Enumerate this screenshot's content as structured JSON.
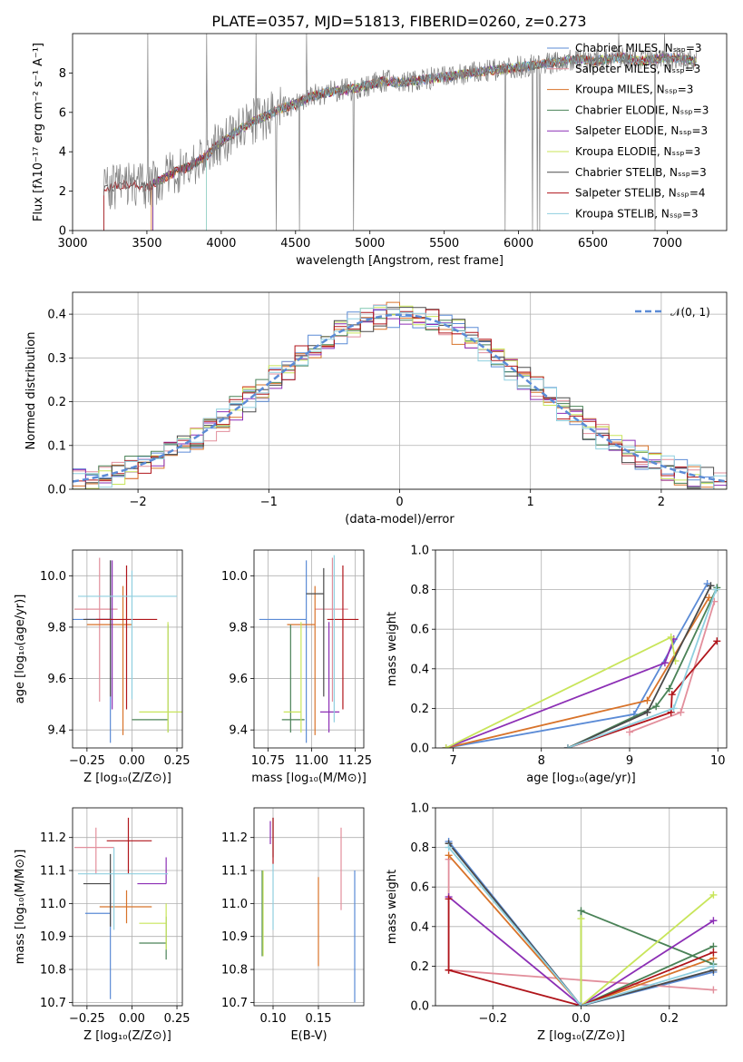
{
  "title": "PLATE=0357, MJD=51813, FIBERID=0260, z=0.273",
  "colors": {
    "Chabrier MILES": "#5b8bd6",
    "Salpeter MILES": "#e28f9c",
    "Kroupa MILES": "#d8732a",
    "Chabrier ELODIE": "#4a8257",
    "Salpeter ELODIE": "#8c2fb5",
    "Kroupa ELODIE": "#c8e55a",
    "Chabrier STELIB": "#4a4a4a",
    "Salpeter STELIB": "#b0151b",
    "Kroupa STELIB": "#8fcfdf"
  },
  "chart_data": [
    {
      "id": "spectrum",
      "type": "line",
      "xlabel": "wavelength [Angstrom, rest frame]",
      "ylabel": "Flux [fλ10⁻¹⁷ erg cm⁻² s⁻¹ A⁻¹]",
      "xlim": [
        3000,
        7400
      ],
      "ylim": [
        0,
        10
      ],
      "xticks": [
        3000,
        3500,
        4000,
        4500,
        5000,
        5500,
        6000,
        6500,
        7000
      ],
      "yticks": [
        0,
        2,
        4,
        6,
        8
      ],
      "legend_position": "right",
      "legend": [
        "Chabrier MILES, Nₛₛₚ=3",
        "Salpeter MILES, Nₛₛₚ=3",
        "Kroupa MILES, Nₛₛₚ=3",
        "Chabrier ELODIE, Nₛₛₚ=3",
        "Salpeter ELODIE, Nₛₛₚ=3",
        "Kroupa ELODIE, Nₛₛₚ=3",
        "Chabrier STELIB, Nₛₛₚ=3",
        "Salpeter STELIB, Nₛₛₚ=4",
        "Kroupa STELIB, Nₛₛₚ=3"
      ],
      "data_trace": {
        "x": [
          3210,
          3300,
          3400,
          3500,
          3600,
          3700,
          3800,
          3900,
          4000,
          4100,
          4200,
          4300,
          4400,
          4500,
          4600,
          4700,
          4800,
          4900,
          5000,
          5100,
          5200,
          5300,
          5400,
          5500,
          5600,
          5700,
          5800,
          5900,
          6000,
          6100,
          6200,
          6300,
          6400,
          6500,
          6600,
          6700,
          6800,
          6900,
          7000,
          7100,
          7200
        ],
        "y": [
          2.0,
          2.3,
          2.4,
          2.2,
          2.6,
          3.0,
          3.3,
          3.8,
          4.5,
          5.0,
          5.5,
          5.8,
          6.2,
          6.4,
          6.8,
          7.0,
          7.1,
          7.2,
          7.4,
          7.6,
          7.5,
          7.6,
          7.7,
          7.8,
          7.9,
          8.0,
          8.1,
          8.2,
          8.3,
          8.4,
          8.5,
          8.6,
          8.7,
          8.6,
          8.7,
          8.8,
          8.6,
          8.7,
          8.8,
          8.7,
          8.6
        ]
      }
    },
    {
      "id": "residuals",
      "type": "line",
      "xlabel": "(data-model)/error",
      "ylabel": "Normed distribution",
      "xlim": [
        -2.5,
        2.5
      ],
      "ylim": [
        0,
        0.45
      ],
      "xticks": [
        -2,
        -1,
        0,
        1,
        2
      ],
      "yticks": [
        0.0,
        0.1,
        0.2,
        0.3,
        0.4
      ],
      "grid": true,
      "legend": "𝒩(0, 1)",
      "legend_position": "top-right"
    },
    {
      "id": "age_vs_Z",
      "type": "scatter",
      "xlabel": "Z [log₁₀(Z/Z⊙)]",
      "ylabel": "age  [log₁₀(age/yr)]",
      "xlim": [
        -0.33,
        0.28
      ],
      "ylim": [
        9.33,
        10.1
      ],
      "xticks": [
        -0.25,
        0.0,
        0.25
      ],
      "yticks": [
        9.4,
        9.6,
        9.8,
        10.0
      ],
      "grid": true,
      "points": [
        {
          "model": "Chabrier MILES",
          "x": -0.12,
          "y": 9.83,
          "xerr": [
            0.31,
            0.0
          ],
          "yerr": [
            0.48,
            0.23
          ]
        },
        {
          "model": "Salpeter MILES",
          "x": -0.18,
          "y": 9.87,
          "xerr": [
            0.14,
            0.1
          ],
          "yerr": [
            0.36,
            0.2
          ]
        },
        {
          "model": "Kroupa MILES",
          "x": -0.05,
          "y": 9.81,
          "xerr": [
            0.2,
            0.05
          ],
          "yerr": [
            0.43,
            0.15
          ]
        },
        {
          "model": "Chabrier ELODIE",
          "x": 0.2,
          "y": 9.44,
          "xerr": [
            0.2,
            0.0
          ],
          "yerr": [
            0.05,
            0.37
          ]
        },
        {
          "model": "Salpeter ELODIE",
          "x": -0.11,
          "y": 9.83,
          "xerr": [
            0.15,
            0.0
          ],
          "yerr": [
            0.35,
            0.23
          ]
        },
        {
          "model": "Kroupa ELODIE",
          "x": 0.2,
          "y": 9.47,
          "xerr": [
            0.16,
            0.08
          ],
          "yerr": [
            0.08,
            0.35
          ]
        },
        {
          "model": "Chabrier STELIB",
          "x": -0.12,
          "y": 9.83,
          "xerr": [
            0.15,
            0.0
          ],
          "yerr": [
            0.3,
            0.23
          ]
        },
        {
          "model": "Salpeter STELIB",
          "x": -0.03,
          "y": 9.83,
          "xerr": [
            0.17,
            0.17
          ],
          "yerr": [
            0.35,
            0.21
          ]
        },
        {
          "model": "Kroupa STELIB",
          "x": 0.0,
          "y": 9.92,
          "xerr": [
            0.3,
            0.25
          ],
          "yerr": [
            0.4,
            0.1
          ]
        }
      ]
    },
    {
      "id": "age_vs_mass",
      "type": "scatter",
      "xlabel": "mass [log₁₀(M/M⊙)]",
      "ylabel": "",
      "xlim": [
        10.67,
        11.3
      ],
      "ylim": [
        9.33,
        10.1
      ],
      "xticks": [
        10.75,
        11.0,
        11.25
      ],
      "yticks": [
        9.4,
        9.6,
        9.8,
        10.0
      ],
      "grid": true,
      "points": [
        {
          "model": "Chabrier MILES",
          "x": 10.97,
          "y": 9.83,
          "xerr": [
            0.27,
            0.0
          ],
          "yerr": [
            0.48,
            0.23
          ]
        },
        {
          "model": "Salpeter MILES",
          "x": 11.12,
          "y": 9.87,
          "xerr": [
            0.1,
            0.09
          ],
          "yerr": [
            0.36,
            0.2
          ]
        },
        {
          "model": "Kroupa MILES",
          "x": 11.02,
          "y": 9.81,
          "xerr": [
            0.16,
            0.0
          ],
          "yerr": [
            0.43,
            0.15
          ]
        },
        {
          "model": "Chabrier ELODIE",
          "x": 10.88,
          "y": 9.44,
          "xerr": [
            0.05,
            0.08
          ],
          "yerr": [
            0.05,
            0.37
          ]
        },
        {
          "model": "Salpeter ELODIE",
          "x": 11.1,
          "y": 9.47,
          "xerr": [
            0.05,
            0.06
          ],
          "yerr": [
            0.08,
            0.35
          ]
        },
        {
          "model": "Kroupa ELODIE",
          "x": 10.94,
          "y": 9.47,
          "xerr": [
            0.1,
            0.0
          ],
          "yerr": [
            0.08,
            0.35
          ]
        },
        {
          "model": "Chabrier STELIB",
          "x": 11.07,
          "y": 9.93,
          "xerr": [
            0.1,
            0.0
          ],
          "yerr": [
            0.4,
            0.1
          ]
        },
        {
          "model": "Salpeter STELIB",
          "x": 11.18,
          "y": 9.83,
          "xerr": [
            0.09,
            0.09
          ],
          "yerr": [
            0.35,
            0.21
          ]
        },
        {
          "model": "Kroupa STELIB",
          "x": 11.13,
          "y": 9.93,
          "xerr": [
            0.0,
            0.0
          ],
          "yerr": [
            0.5,
            0.15
          ]
        }
      ]
    },
    {
      "id": "weight_vs_age",
      "type": "line",
      "xlabel": "age  [log₁₀(age/yr)]",
      "ylabel": "mass weight",
      "xlim": [
        6.8,
        10.1
      ],
      "ylim": [
        0.0,
        1.0
      ],
      "xticks": [
        7,
        8,
        9,
        10
      ],
      "yticks": [
        0.0,
        0.2,
        0.4,
        0.6,
        0.8,
        1.0
      ],
      "grid": true,
      "series": [
        {
          "model": "Chabrier MILES",
          "x": [
            6.92,
            9.05,
            9.88
          ],
          "y": [
            0.0,
            0.17,
            0.83
          ]
        },
        {
          "model": "Salpeter MILES",
          "x": [
            9.0,
            9.58,
            9.96
          ],
          "y": [
            0.08,
            0.18,
            0.74
          ]
        },
        {
          "model": "Kroupa MILES",
          "x": [
            6.92,
            9.2,
            9.9
          ],
          "y": [
            0.0,
            0.24,
            0.76
          ]
        },
        {
          "model": "Chabrier ELODIE",
          "x": [
            8.3,
            9.3,
            9.45,
            9.99
          ],
          "y": [
            0.0,
            0.21,
            0.3,
            0.81
          ]
        },
        {
          "model": "Salpeter ELODIE",
          "x": [
            6.92,
            9.4,
            9.5
          ],
          "y": [
            0.0,
            0.43,
            0.55
          ]
        },
        {
          "model": "Kroupa ELODIE",
          "x": [
            6.92,
            9.47,
            9.52
          ],
          "y": [
            0.0,
            0.56,
            0.44
          ]
        },
        {
          "model": "Chabrier STELIB",
          "x": [
            8.3,
            9.2,
            9.92
          ],
          "y": [
            0.0,
            0.18,
            0.82
          ]
        },
        {
          "model": "Salpeter STELIB",
          "x": [
            8.3,
            9.47,
            9.48,
            9.99
          ],
          "y": [
            0.0,
            0.18,
            0.27,
            0.54
          ]
        },
        {
          "model": "Kroupa STELIB",
          "x": [
            8.3,
            9.5,
            9.98
          ],
          "y": [
            0.0,
            0.2,
            0.8
          ]
        }
      ]
    },
    {
      "id": "mass_vs_Z",
      "type": "scatter",
      "xlabel": "Z [log₁₀(Z/Z⊙)]",
      "ylabel": "mass [log₁₀(M/M⊙)]",
      "xlim": [
        -0.33,
        0.28
      ],
      "ylim": [
        10.69,
        11.29
      ],
      "xticks": [
        -0.25,
        0.0,
        0.25
      ],
      "yticks": [
        10.7,
        10.8,
        10.9,
        11.0,
        11.1,
        11.2
      ],
      "grid": true,
      "points": [
        {
          "model": "Chabrier MILES",
          "x": -0.12,
          "y": 10.97,
          "xerr": [
            0.14,
            0.0
          ],
          "yerr": [
            0.26,
            0.12
          ]
        },
        {
          "model": "Salpeter MILES",
          "x": -0.2,
          "y": 11.17,
          "xerr": [
            0.12,
            0.1
          ],
          "yerr": [
            0.08,
            0.06
          ]
        },
        {
          "model": "Kroupa MILES",
          "x": -0.03,
          "y": 10.99,
          "xerr": [
            0.15,
            0.14
          ],
          "yerr": [
            0.05,
            0.05
          ]
        },
        {
          "model": "Chabrier ELODIE",
          "x": 0.19,
          "y": 10.88,
          "xerr": [
            0.15,
            0.0
          ],
          "yerr": [
            0.05,
            0.08
          ]
        },
        {
          "model": "Salpeter ELODIE",
          "x": 0.19,
          "y": 11.06,
          "xerr": [
            0.16,
            0.0
          ],
          "yerr": [
            0.0,
            0.08
          ]
        },
        {
          "model": "Kroupa ELODIE",
          "x": 0.19,
          "y": 10.94,
          "xerr": [
            0.15,
            0.0
          ],
          "yerr": [
            0.08,
            0.06
          ]
        },
        {
          "model": "Chabrier STELIB",
          "x": -0.12,
          "y": 11.06,
          "xerr": [
            0.15,
            0.0
          ],
          "yerr": [
            0.13,
            0.09
          ]
        },
        {
          "model": "Salpeter STELIB",
          "x": -0.02,
          "y": 11.19,
          "xerr": [
            0.12,
            0.13
          ],
          "yerr": [
            0.1,
            0.07
          ]
        },
        {
          "model": "Kroupa STELIB",
          "x": -0.1,
          "y": 11.09,
          "xerr": [
            0.2,
            0.3
          ],
          "yerr": [
            0.17,
            0.08
          ]
        }
      ]
    },
    {
      "id": "mass_vs_ebv",
      "type": "scatter",
      "xlabel": "E(B-V)",
      "ylabel": "",
      "xlim": [
        0.079,
        0.2
      ],
      "ylim": [
        10.69,
        11.29
      ],
      "xticks": [
        0.1,
        0.15
      ],
      "yticks": [
        10.7,
        10.8,
        10.9,
        11.0,
        11.1,
        11.2
      ],
      "grid": true,
      "points": [
        {
          "model": "Chabrier MILES",
          "x": 0.19,
          "y": 10.9,
          "xerr": [
            0,
            0
          ],
          "yerr": [
            0.2,
            0.2
          ]
        },
        {
          "model": "Salpeter MILES",
          "x": 0.175,
          "y": 11.1,
          "xerr": [
            0,
            0
          ],
          "yerr": [
            0.12,
            0.13
          ]
        },
        {
          "model": "Kroupa MILES",
          "x": 0.15,
          "y": 10.95,
          "xerr": [
            0,
            0
          ],
          "yerr": [
            0.14,
            0.13
          ]
        },
        {
          "model": "Chabrier ELODIE",
          "x": 0.088,
          "y": 10.97,
          "xerr": [
            0,
            0
          ],
          "yerr": [
            0.13,
            0.13
          ]
        },
        {
          "model": "Salpeter ELODIE",
          "x": 0.097,
          "y": 11.21,
          "xerr": [
            0,
            0
          ],
          "yerr": [
            0.03,
            0.04
          ]
        },
        {
          "model": "Kroupa ELODIE",
          "x": 0.089,
          "y": 10.97,
          "xerr": [
            0,
            0
          ],
          "yerr": [
            0.13,
            0.13
          ]
        },
        {
          "model": "Chabrier STELIB",
          "x": 0.1,
          "y": 11.2,
          "xerr": [
            0,
            0
          ],
          "yerr": [
            0.06,
            0.06
          ]
        },
        {
          "model": "Salpeter STELIB",
          "x": 0.1,
          "y": 11.19,
          "xerr": [
            0,
            0
          ],
          "yerr": [
            0.07,
            0.07
          ]
        },
        {
          "model": "Kroupa STELIB",
          "x": 0.1,
          "y": 11.02,
          "xerr": [
            0,
            0
          ],
          "yerr": [
            0.1,
            0.1
          ]
        }
      ]
    },
    {
      "id": "weight_vs_Z",
      "type": "line",
      "xlabel": "Z [log₁₀(Z/Z⊙)]",
      "ylabel": "mass weight",
      "xlim": [
        -0.33,
        0.33
      ],
      "ylim": [
        0.0,
        1.0
      ],
      "xticks": [
        -0.2,
        0.0,
        0.2
      ],
      "yticks": [
        0.0,
        0.2,
        0.4,
        0.6,
        0.8,
        1.0
      ],
      "grid": true,
      "series": [
        {
          "model": "Chabrier MILES",
          "x": [
            -0.3,
            0.0,
            0.3
          ],
          "y": [
            0.83,
            0.0,
            0.17
          ]
        },
        {
          "model": "Salpeter MILES",
          "x": [
            -0.3,
            -0.3,
            0.3
          ],
          "y": [
            0.74,
            0.18,
            0.08
          ]
        },
        {
          "model": "Kroupa MILES",
          "x": [
            -0.3,
            0.0,
            0.3
          ],
          "y": [
            0.76,
            0.0,
            0.24
          ]
        },
        {
          "model": "Chabrier ELODIE",
          "x": [
            0.3,
            0.0,
            0.0,
            0.3
          ],
          "y": [
            0.3,
            0.0,
            0.48,
            0.21
          ]
        },
        {
          "model": "Salpeter ELODIE",
          "x": [
            -0.3,
            0.0,
            0.3
          ],
          "y": [
            0.55,
            0.0,
            0.43
          ]
        },
        {
          "model": "Kroupa ELODIE",
          "x": [
            0.0,
            0.0,
            0.3
          ],
          "y": [
            0.44,
            0.0,
            0.56
          ]
        },
        {
          "model": "Chabrier STELIB",
          "x": [
            -0.3,
            0.0,
            0.3
          ],
          "y": [
            0.82,
            0.0,
            0.18
          ]
        },
        {
          "model": "Salpeter STELIB",
          "x": [
            -0.3,
            -0.3,
            0.0,
            0.3
          ],
          "y": [
            0.54,
            0.18,
            0.0,
            0.27
          ]
        },
        {
          "model": "Kroupa STELIB",
          "x": [
            -0.3,
            0.0,
            0.3
          ],
          "y": [
            0.8,
            0.0,
            0.2
          ]
        }
      ]
    }
  ]
}
